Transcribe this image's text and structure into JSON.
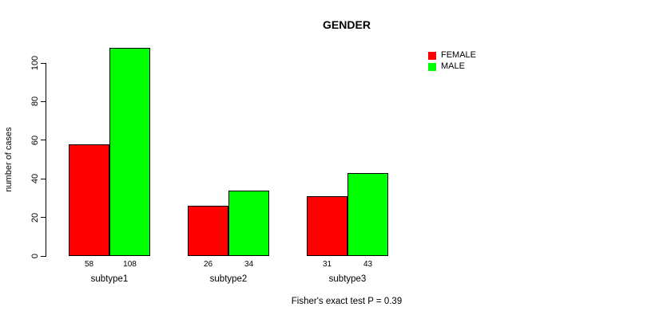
{
  "chart_data": {
    "type": "bar",
    "title": "GENDER",
    "xlabel": "",
    "ylabel": "number of cases",
    "categories": [
      "subtype1",
      "subtype2",
      "subtype3"
    ],
    "series": [
      {
        "name": "FEMALE",
        "color": "#ff0000",
        "values": [
          58,
          26,
          31
        ]
      },
      {
        "name": "MALE",
        "color": "#00ff00",
        "values": [
          108,
          34,
          43
        ]
      }
    ],
    "bar_value_labels": [
      [
        "58",
        "108"
      ],
      [
        "26",
        "34"
      ],
      [
        "31",
        "43"
      ]
    ],
    "yticks": [
      0,
      20,
      40,
      60,
      80,
      100
    ],
    "ylim": [
      0,
      110
    ],
    "grid": false,
    "legend_position": "right",
    "annotation": "Fisher's exact test P = 0.39"
  }
}
